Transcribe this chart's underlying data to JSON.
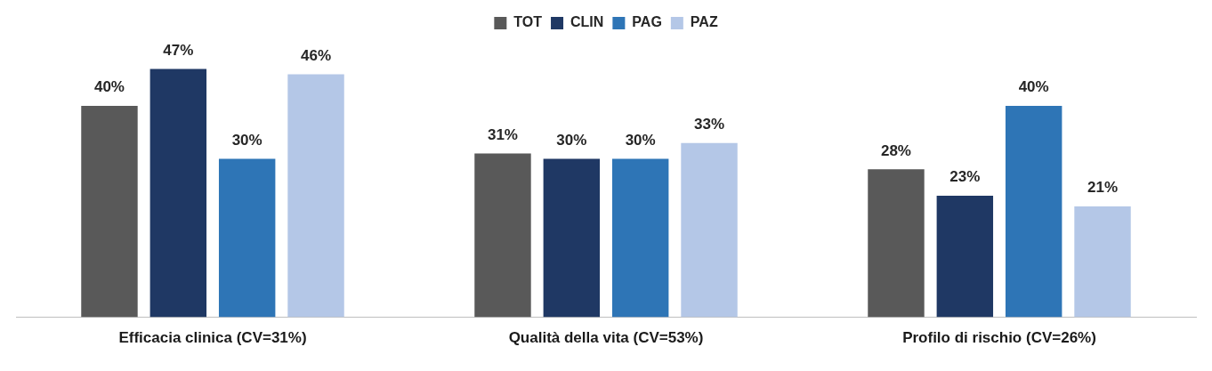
{
  "chart_data": {
    "type": "bar",
    "categories": [
      "Efficacia clinica (CV=31%)",
      "Qualità della vita (CV=53%)",
      "Profilo di rischio (CV=26%)"
    ],
    "series": [
      {
        "name": "TOT",
        "color": "#595959",
        "values": [
          40,
          31,
          28
        ],
        "value_labels": [
          "40%",
          "31%",
          "28%"
        ]
      },
      {
        "name": "CLIN",
        "color": "#1f3864",
        "values": [
          47,
          30,
          23
        ],
        "value_labels": [
          "47%",
          "30%",
          "23%"
        ]
      },
      {
        "name": "PAG",
        "color": "#2e75b6",
        "values": [
          30,
          30,
          40
        ],
        "value_labels": [
          "30%",
          "30%",
          "40%"
        ]
      },
      {
        "name": "PAZ",
        "color": "#b4c7e7",
        "values": [
          46,
          33,
          21
        ],
        "value_labels": [
          "46%",
          "33%",
          "21%"
        ]
      }
    ],
    "legend": "top",
    "grid": false
  }
}
